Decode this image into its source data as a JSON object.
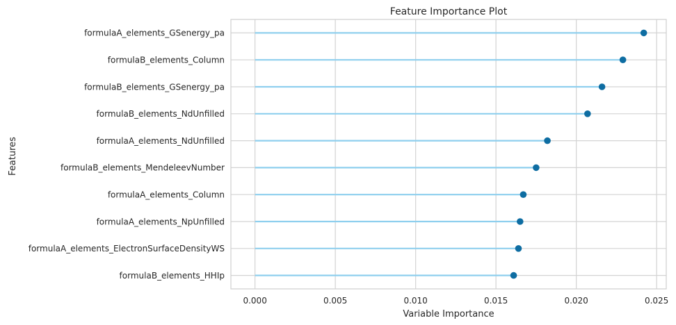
{
  "chart_data": {
    "type": "lollipop",
    "title": "Feature Importance Plot",
    "xlabel": "Variable Importance",
    "ylabel": "Features",
    "xlim": [
      -0.0015,
      0.0256
    ],
    "xticks": [
      0.0,
      0.005,
      0.01,
      0.015,
      0.02,
      0.025
    ],
    "xtick_labels": [
      "0.000",
      "0.005",
      "0.010",
      "0.015",
      "0.020",
      "0.025"
    ],
    "grid": true,
    "categories": [
      "formulaA_elements_GSenergy_pa",
      "formulaB_elements_Column",
      "formulaB_elements_GSenergy_pa",
      "formulaB_elements_NdUnfilled",
      "formulaA_elements_NdUnfilled",
      "formulaB_elements_MendeleevNumber",
      "formulaA_elements_Column",
      "formulaA_elements_NpUnfilled",
      "formulaA_elements_ElectronSurfaceDensityWS",
      "formulaB_elements_HHIp"
    ],
    "values": [
      0.0242,
      0.0229,
      0.0216,
      0.0207,
      0.0182,
      0.0175,
      0.0167,
      0.0165,
      0.0164,
      0.0161
    ],
    "colors": {
      "stem": "#8ecfee",
      "marker": "#0e6da2",
      "grid": "#d3d3d3",
      "frame": "#cfcfcf"
    }
  }
}
